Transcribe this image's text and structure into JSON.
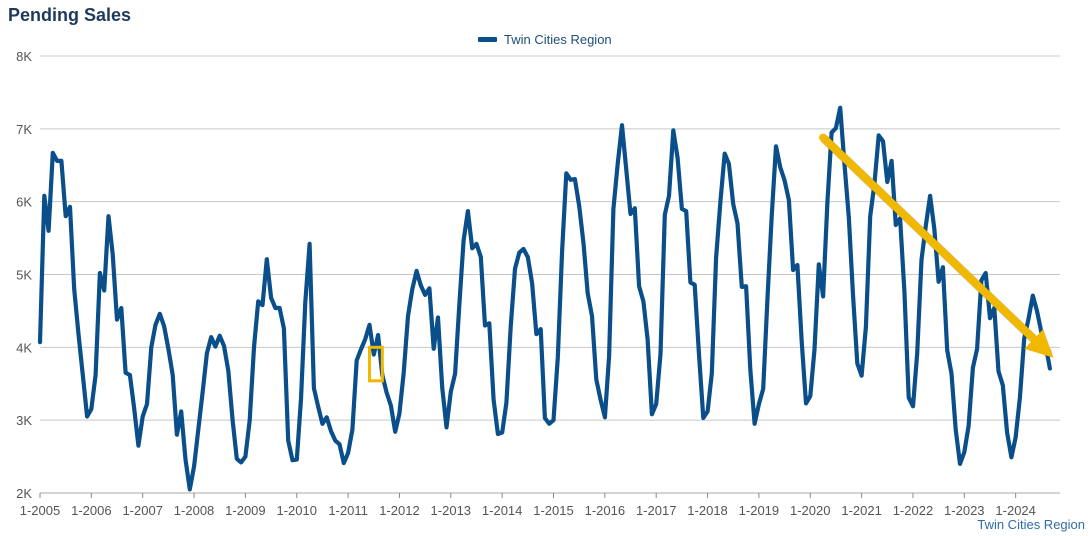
{
  "page": {
    "title": "Pending Sales",
    "source_label": "Twin Cities Region"
  },
  "colors": {
    "series": "#0b4f8a",
    "grid": "#c8c8c8",
    "axis_text": "#555555",
    "arrow": "#f0b800",
    "highlight_box": "#f0b800"
  },
  "chart_data": {
    "type": "line",
    "title": "Pending Sales",
    "xlabel": "",
    "ylabel": "",
    "ylim": [
      2000,
      8000
    ],
    "yticks": [
      2000,
      3000,
      4000,
      5000,
      6000,
      7000,
      8000
    ],
    "ytick_labels": [
      "2K",
      "3K",
      "4K",
      "5K",
      "6K",
      "7K",
      "8K"
    ],
    "xtick_labels": [
      "1-2005",
      "1-2006",
      "1-2007",
      "1-2008",
      "1-2009",
      "1-2010",
      "1-2011",
      "1-2012",
      "1-2013",
      "1-2014",
      "1-2015",
      "1-2016",
      "1-2017",
      "1-2018",
      "1-2019",
      "1-2020",
      "1-2021",
      "1-2022",
      "1-2023",
      "1-2024"
    ],
    "x_start": "1-2005",
    "x_end": "9-2024",
    "grid": true,
    "legend_position": "top-center",
    "series": [
      {
        "name": "Twin Cities Region",
        "values": [
          4070,
          6080,
          5600,
          6670,
          6560,
          6560,
          5800,
          5930,
          4800,
          4180,
          3620,
          3050,
          3150,
          3620,
          5020,
          4780,
          5800,
          5280,
          4380,
          4540,
          3650,
          3620,
          3170,
          2650,
          3050,
          3220,
          4000,
          4310,
          4460,
          4290,
          3980,
          3620,
          2800,
          3120,
          2460,
          2050,
          2370,
          2870,
          3380,
          3920,
          4140,
          4010,
          4160,
          4020,
          3680,
          3000,
          2470,
          2420,
          2500,
          3000,
          4000,
          4630,
          4580,
          5210,
          4680,
          4540,
          4540,
          4260,
          2720,
          2450,
          2460,
          3290,
          4620,
          5420,
          3440,
          3190,
          2950,
          3040,
          2850,
          2720,
          2670,
          2410,
          2550,
          2870,
          3820,
          3970,
          4110,
          4310,
          3900,
          4170,
          3620,
          3380,
          3200,
          2840,
          3090,
          3650,
          4430,
          4800,
          5050,
          4850,
          4720,
          4810,
          3980,
          4410,
          3450,
          2900,
          3390,
          3640,
          4600,
          5470,
          5870,
          5360,
          5420,
          5240,
          4300,
          4330,
          3280,
          2810,
          2830,
          3240,
          4280,
          5080,
          5300,
          5350,
          5240,
          4880,
          4180,
          4250,
          3030,
          2950,
          3000,
          3860,
          5320,
          6390,
          6300,
          6310,
          5940,
          5430,
          4740,
          4430,
          3560,
          3280,
          3040,
          3880,
          5900,
          6520,
          7050,
          6450,
          5830,
          5910,
          4840,
          4630,
          4110,
          3080,
          3220,
          3910,
          5820,
          6080,
          6980,
          6600,
          5900,
          5870,
          4890,
          4860,
          3900,
          3030,
          3120,
          3640,
          5230,
          6000,
          6660,
          6520,
          5970,
          5700,
          4830,
          4840,
          3700,
          2950,
          3220,
          3430,
          4680,
          5800,
          6760,
          6470,
          6290,
          6020,
          5060,
          5130,
          4080,
          3230,
          3330,
          3970,
          5140,
          4700,
          5990,
          6950,
          7010,
          7290,
          6510,
          5790,
          4720,
          3780,
          3610,
          4280,
          5800,
          6240,
          6910,
          6830,
          6270,
          6560,
          5680,
          5770,
          4770,
          3310,
          3190,
          3920,
          5200,
          5670,
          6080,
          5630,
          4900,
          5100,
          3960,
          3640,
          2870,
          2400,
          2560,
          2920,
          3720,
          3980,
          4920,
          5020,
          4400,
          4540,
          3670,
          3480,
          2830,
          2490,
          2760,
          3310,
          4120,
          4390,
          4710,
          4500,
          4210,
          4030,
          3710
        ]
      }
    ],
    "annotations": [
      {
        "type": "highlight-box",
        "x_from": "6-2011",
        "x_to": "9-2011",
        "y_from": 3540,
        "y_to": 4000
      },
      {
        "type": "arrow",
        "x_from": "4-2020",
        "y_from": 6880,
        "x_to": "8-2024",
        "y_to": 3960
      }
    ]
  }
}
